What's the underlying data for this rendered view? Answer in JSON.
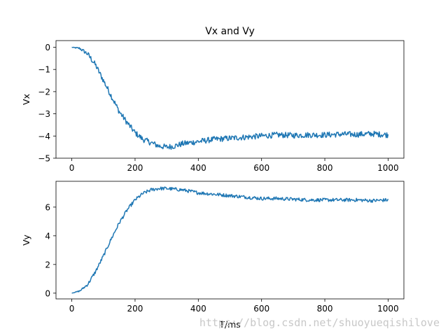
{
  "chart_data": [
    {
      "type": "line",
      "title": "Vx and Vy",
      "xlabel": "",
      "ylabel": "Vx",
      "xlim": [
        -50,
        1050
      ],
      "ylim": [
        -5,
        0.3
      ],
      "xticks": [
        0,
        200,
        400,
        600,
        800,
        1000
      ],
      "xtick_labels": [
        "0",
        "200",
        "400",
        "600",
        "800",
        "1000"
      ],
      "yticks": [
        0,
        -1,
        -2,
        -3,
        -4,
        -5
      ],
      "ytick_labels": [
        "0",
        "−1",
        "−2",
        "−3",
        "−4",
        "−5"
      ],
      "grid": false,
      "color": "#1f77b4",
      "series": [
        {
          "x": [
            0,
            25,
            50,
            75,
            100,
            125,
            150,
            175,
            200,
            225,
            250,
            275,
            300,
            325,
            350,
            375,
            400,
            450,
            500,
            550,
            600,
            650,
            700,
            750,
            800,
            850,
            900,
            950,
            1000
          ],
          "values": [
            0,
            -0.05,
            -0.3,
            -0.8,
            -1.5,
            -2.2,
            -2.9,
            -3.4,
            -3.85,
            -4.15,
            -4.3,
            -4.45,
            -4.5,
            -4.45,
            -4.35,
            -4.3,
            -4.25,
            -4.15,
            -4.1,
            -4.05,
            -4.0,
            -3.95,
            -3.97,
            -3.95,
            -3.95,
            -3.92,
            -3.93,
            -3.9,
            -3.95
          ],
          "noise_amplitude": 0.13
        }
      ]
    },
    {
      "type": "line",
      "title": "",
      "xlabel": "T/ms",
      "ylabel": "Vy",
      "xlim": [
        -50,
        1050
      ],
      "ylim": [
        -0.4,
        7.8
      ],
      "xticks": [
        0,
        200,
        400,
        600,
        800,
        1000
      ],
      "xtick_labels": [
        "0",
        "200",
        "400",
        "600",
        "800",
        "1000"
      ],
      "yticks": [
        0,
        2,
        4,
        6
      ],
      "ytick_labels": [
        "0",
        "2",
        "4",
        "6"
      ],
      "grid": false,
      "color": "#1f77b4",
      "series": [
        {
          "x": [
            0,
            25,
            50,
            75,
            100,
            125,
            150,
            175,
            200,
            225,
            250,
            275,
            300,
            325,
            350,
            375,
            400,
            450,
            500,
            550,
            600,
            650,
            700,
            750,
            800,
            850,
            900,
            950,
            1000
          ],
          "values": [
            0,
            0.15,
            0.6,
            1.5,
            2.6,
            3.8,
            4.9,
            5.8,
            6.5,
            6.95,
            7.2,
            7.3,
            7.3,
            7.25,
            7.2,
            7.1,
            7.0,
            6.9,
            6.8,
            6.7,
            6.6,
            6.6,
            6.55,
            6.5,
            6.5,
            6.5,
            6.5,
            6.45,
            6.5
          ],
          "noise_amplitude": 0.12
        }
      ]
    }
  ],
  "watermark": "https://blog.csdn.net/shuoyueqishilove"
}
